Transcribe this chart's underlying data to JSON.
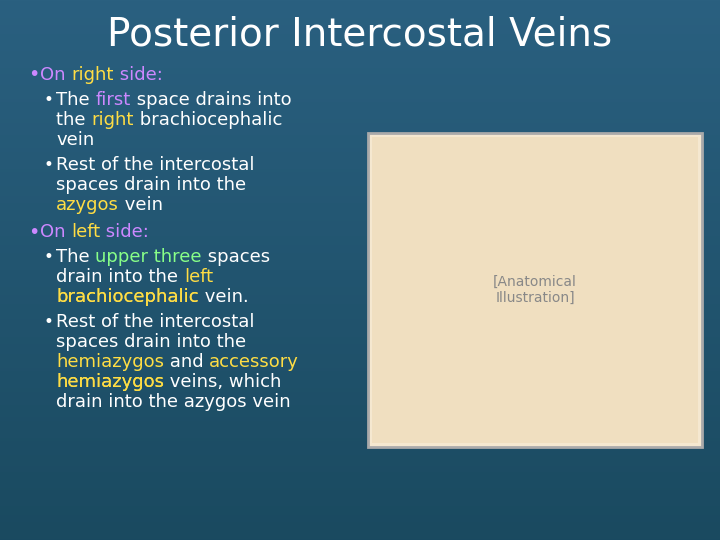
{
  "title": "Posterior Intercostal Veins",
  "title_color": "#ffffff",
  "title_fontsize": 28,
  "bg_color_top": "#2a6080",
  "bg_color_bottom": "#1a4a60",
  "text_color_white": "#ffffff",
  "text_color_purple": "#cc88ff",
  "text_color_yellow": "#ffdd44",
  "text_color_green": "#88ff88",
  "bullet1_header": "On right side:",
  "bullet1_header_colors": [
    "purple",
    "white",
    "white"
  ],
  "bullet1a_parts": [
    {
      "text": "The ",
      "color": "#ffffff"
    },
    {
      "text": "first",
      "color": "#cc88ff"
    },
    {
      "text": " space drains into\nthe ",
      "color": "#ffffff"
    },
    {
      "text": "right",
      "color": "#ffdd44"
    },
    {
      "text": " brachiocephalic\nvein",
      "color": "#ffffff"
    }
  ],
  "bullet1b_parts": [
    {
      "text": "Rest of the intercostal\nspaces drain into the\n",
      "color": "#ffffff"
    },
    {
      "text": "azygos",
      "color": "#ffdd44"
    },
    {
      "text": " vein",
      "color": "#ffffff"
    }
  ],
  "bullet2_header": "On left side:",
  "bullet2a_parts": [
    {
      "text": "The ",
      "color": "#ffffff"
    },
    {
      "text": "upper three",
      "color": "#88ff88"
    },
    {
      "text": " spaces\ndrain into the ",
      "color": "#ffffff"
    },
    {
      "text": "left\nbrachiocephalic",
      "color": "#ffdd44"
    },
    {
      "text": " vein.",
      "color": "#ffffff"
    }
  ],
  "bullet2b_parts": [
    {
      "text": "Rest of the intercostal\nspaces drain into the\n",
      "color": "#ffffff"
    },
    {
      "text": "hemiazygos",
      "color": "#ffdd44"
    },
    {
      "text": " and ",
      "color": "#ffffff"
    },
    {
      "text": "accessory\nhemiazygos",
      "color": "#ffdd44"
    },
    {
      "text": " veins, which\ndrain into the azygos vein",
      "color": "#ffffff"
    }
  ],
  "figsize": [
    7.2,
    5.4
  ],
  "dpi": 100
}
